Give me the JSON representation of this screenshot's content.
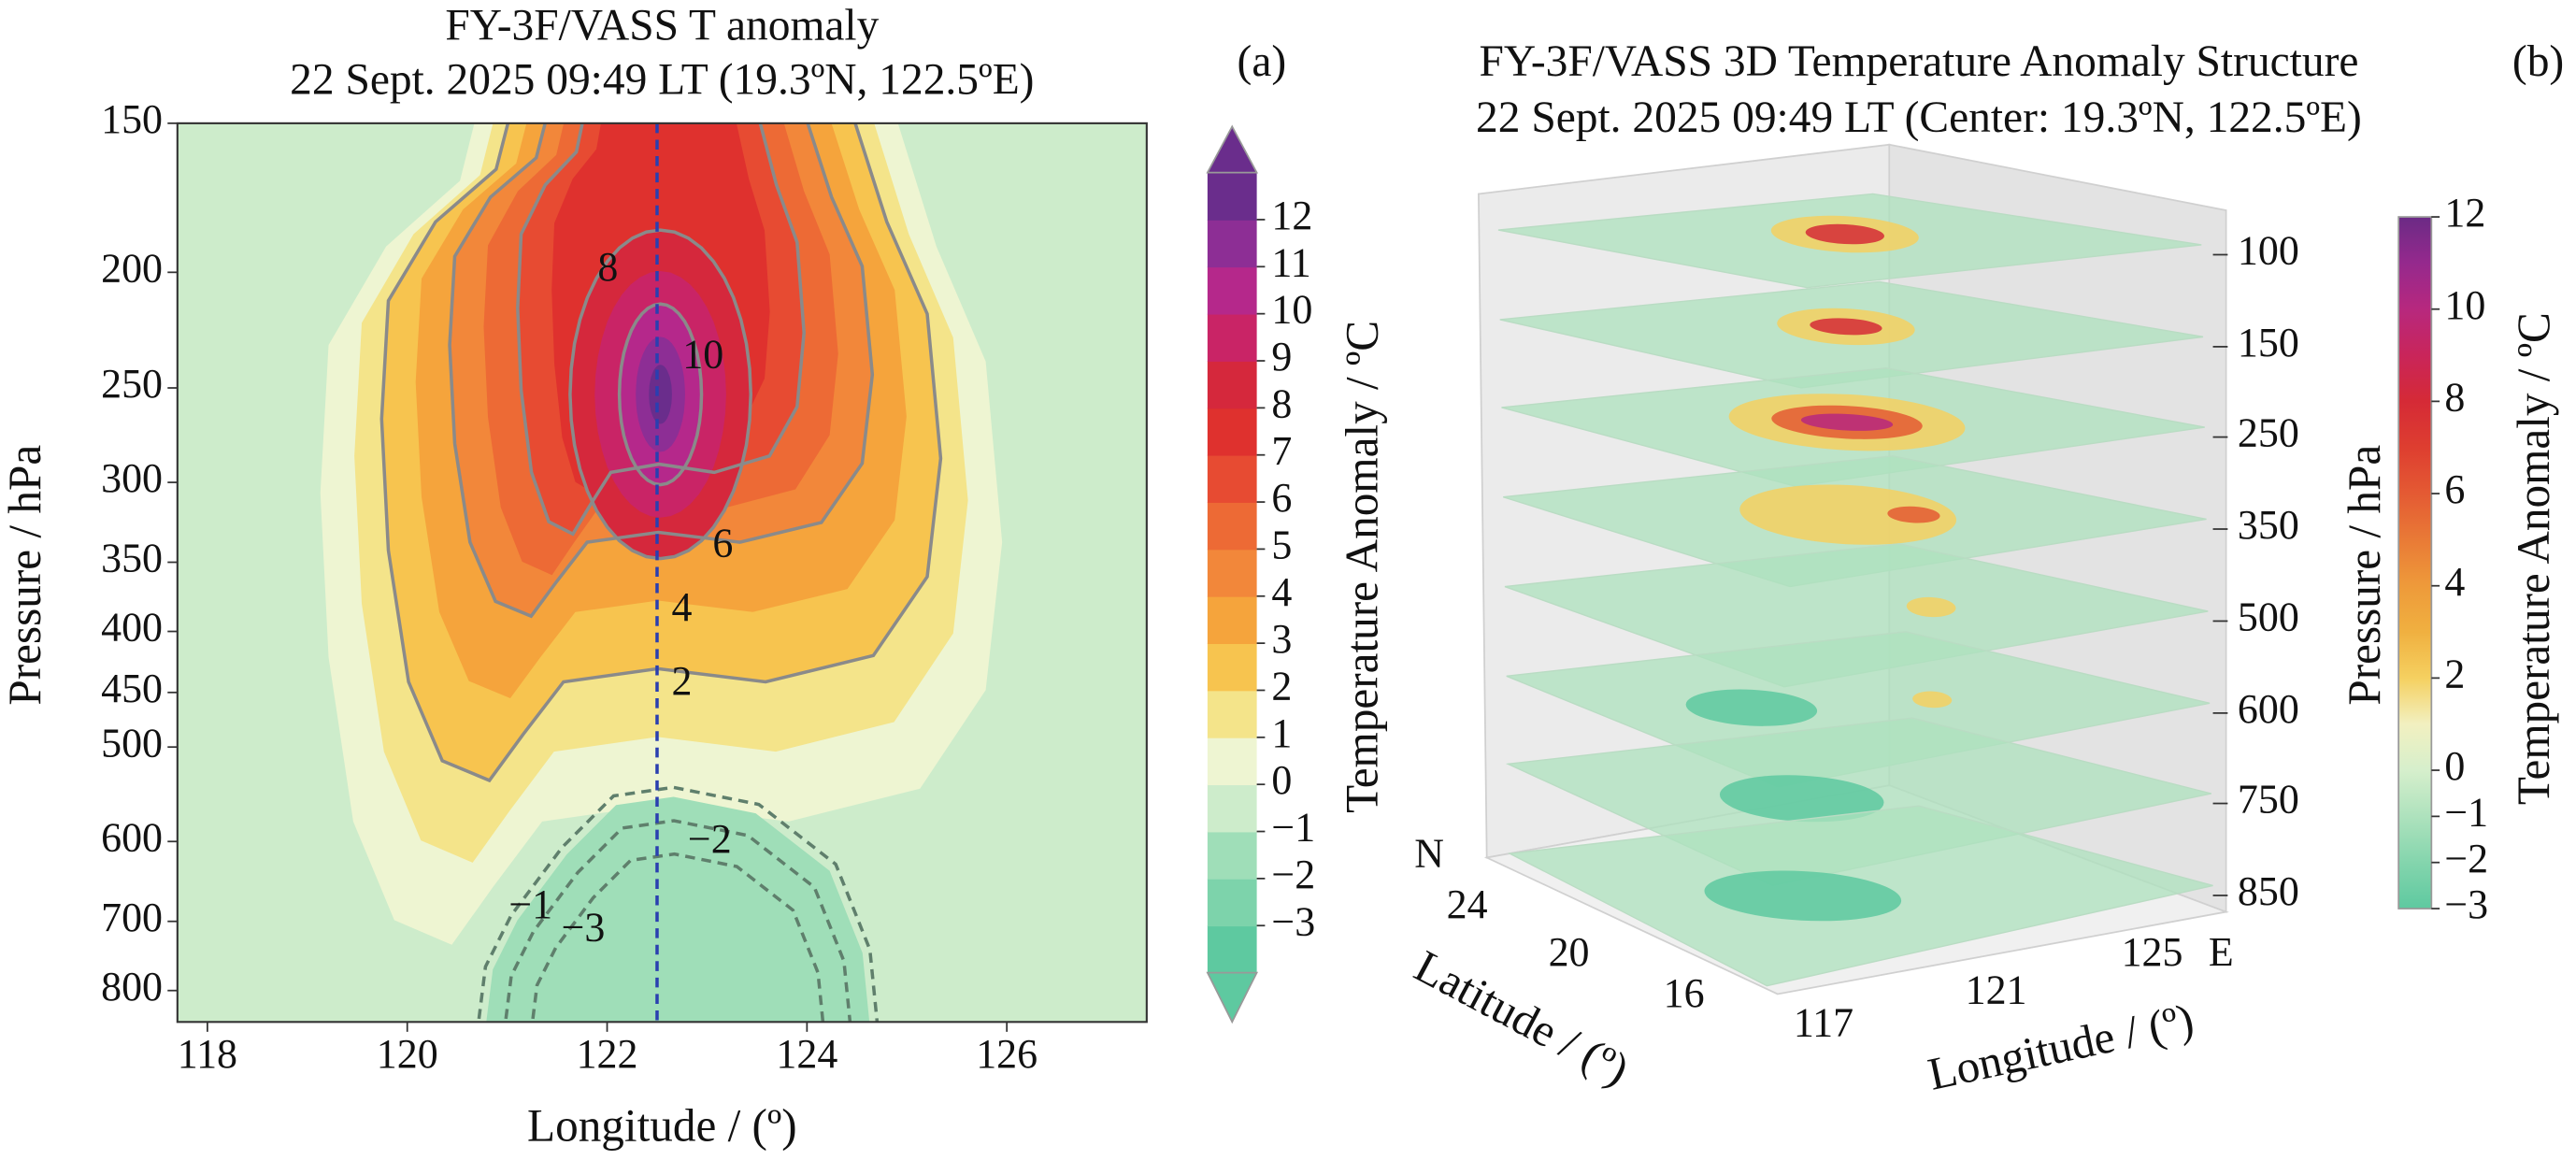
{
  "chart_data": [
    {
      "type": "contour",
      "title": "FY-3F/VASS T anomaly",
      "subtitle": "22 Sept. 2025 09:49 LT (19.3ºN, 122.5ºE)",
      "panel_label": "(a)",
      "x_label": "Longitude / (º)",
      "y_label": "Pressure / hPa",
      "xlim": [
        117.7,
        127.4
      ],
      "xticks": [
        118,
        120,
        122,
        124,
        126
      ],
      "ylim": [
        850,
        150
      ],
      "yticks": [
        150,
        200,
        250,
        300,
        350,
        400,
        450,
        500,
        600,
        700,
        800
      ],
      "log_y": true,
      "center_line_x": 122.5,
      "contour_labels": [
        8,
        10,
        6,
        4,
        2,
        {
          "value": -2,
          "label": "−2"
        },
        {
          "value": -1,
          "label": "−1"
        },
        {
          "value": -3,
          "label": "−3"
        }
      ],
      "colorbar": {
        "label": "Temperature Anomaly / ºC",
        "bounds": [
          -4,
          -3,
          -2,
          -1,
          0,
          1,
          2,
          3,
          4,
          5,
          6,
          7,
          8,
          9,
          10,
          11,
          12,
          13
        ],
        "colors": [
          "#5ec9a0",
          "#7dd3ab",
          "#9fdeb8",
          "#cdeccb",
          "#eef5d2",
          "#f4e48a",
          "#f7c44f",
          "#f5a43c",
          "#f2873a",
          "#ed6a35",
          "#e74b32",
          "#df312e",
          "#d5283c",
          "#c92466",
          "#b5288b",
          "#8d2e95",
          "#6a2d8c"
        ],
        "ticks": [
          {
            "value": -3,
            "label": "−3"
          },
          {
            "value": -2,
            "label": "−2"
          },
          {
            "value": -1,
            "label": "−1"
          },
          0,
          1,
          2,
          3,
          4,
          5,
          6,
          7,
          8,
          9,
          10,
          11,
          12
        ]
      }
    },
    {
      "type": "slices3d",
      "title": "FY-3F/VASS 3D Temperature Anomaly Structure",
      "subtitle": "22 Sept. 2025 09:49 LT (Center: 19.3ºN, 122.5ºE)",
      "panel_label": "(b)",
      "z_label": "Pressure / hPa",
      "levels": [
        100,
        150,
        250,
        350,
        500,
        600,
        750,
        850
      ],
      "lat_label": "Latitude / (º)",
      "lat_dir": "N",
      "lat_ticks": [
        24,
        20,
        16
      ],
      "lon_label": "Longitude / (º)",
      "lon_dir": "E",
      "lon_ticks": [
        117,
        121,
        125
      ],
      "colorbar": {
        "label": "Temperature Anomaly / ºC",
        "lim": [
          -3,
          12
        ],
        "colors": [
          "#5ec9a0",
          "#84d5ad",
          "#aee2bd",
          "#d6efcc",
          "#f2f0c0",
          "#f5d060",
          "#f0b040",
          "#ee9a3a",
          "#e97a36",
          "#e45a33",
          "#de3e30",
          "#d52a36",
          "#c9255a",
          "#b7287e",
          "#95298d",
          "#6b2a85"
        ],
        "ticks": [
          {
            "value": -3,
            "label": "−3"
          },
          {
            "value": -2,
            "label": "−2"
          },
          {
            "value": -1,
            "label": "−1"
          },
          0,
          2,
          4,
          6,
          8,
          10,
          12
        ]
      }
    }
  ]
}
